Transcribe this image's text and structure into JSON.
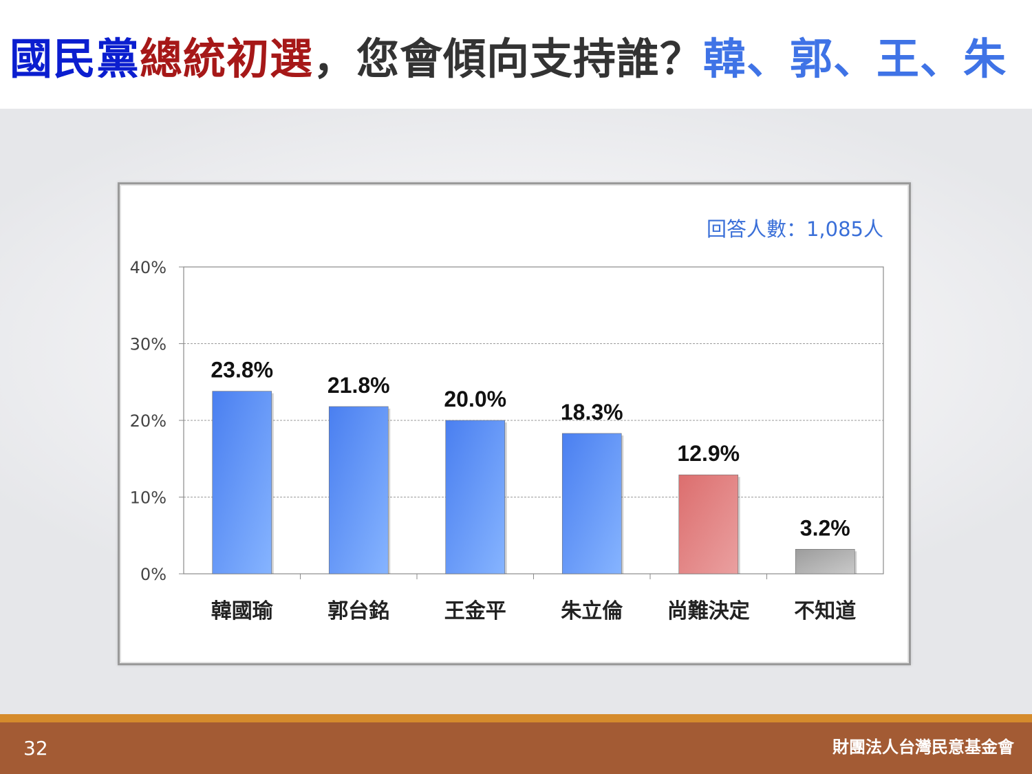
{
  "slide": {
    "title_parts": [
      {
        "text": "國民黨",
        "color": "#0b1ecf"
      },
      {
        "text": "總統初選",
        "color": "#a61818"
      },
      {
        "text": "，您會傾向支持誰？",
        "color": "#333333"
      },
      {
        "text": "韓、郭、王、朱",
        "color": "#3f73e6"
      }
    ],
    "page_number": "32",
    "organization": "財團法人台灣民意基金會"
  },
  "chart_data": {
    "type": "bar",
    "categories": [
      "韓國瑜",
      "郭台銘",
      "王金平",
      "朱立倫",
      "尚難決定",
      "不知道"
    ],
    "values": [
      23.8,
      21.8,
      20.0,
      18.3,
      12.9,
      3.2
    ],
    "value_labels": [
      "23.8%",
      "21.8%",
      "20.0%",
      "18.3%",
      "12.9%",
      "3.2%"
    ],
    "bar_colors": [
      "#5b8ff2",
      "#5b8ff2",
      "#5b8ff2",
      "#5b8ff2",
      "#e07b7b",
      "#a9a9a9"
    ],
    "yticks": [
      0,
      10,
      20,
      30,
      40
    ],
    "ytick_labels": [
      "0%",
      "10%",
      "20%",
      "30%",
      "40%"
    ],
    "ylim": [
      0,
      40
    ],
    "grid": true,
    "note": "回答人數：1,085人",
    "legend": "none"
  }
}
